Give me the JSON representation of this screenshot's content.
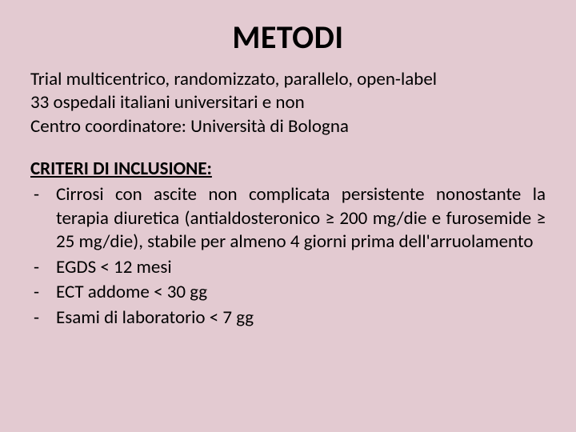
{
  "slide": {
    "title": "METODI",
    "intro_lines": [
      "Trial multicentrico, randomizzato, parallelo, open-label",
      "33 ospedali italiani universitari e non",
      "Centro coordinatore: Università di Bologna"
    ],
    "criteria_heading": "CRITERI DI INCLUSIONE:",
    "criteria": [
      "Cirrosi con ascite non complicata persistente nonostante la terapia diuretica (antialdosteronico ≥ 200 mg/die e furosemide ≥ 25 mg/die), stabile per almeno 4 giorni prima dell'arruolamento",
      "EGDS < 12 mesi",
      "ECT addome < 30 gg",
      "Esami di laboratorio < 7 gg"
    ],
    "colors": {
      "background": "#e3cad1",
      "text": "#000000"
    },
    "typography": {
      "title_fontsize": 40,
      "title_weight": 700,
      "body_fontsize": 23,
      "heading_fontsize": 23,
      "heading_weight": 700,
      "font_family": "Calibri"
    }
  }
}
